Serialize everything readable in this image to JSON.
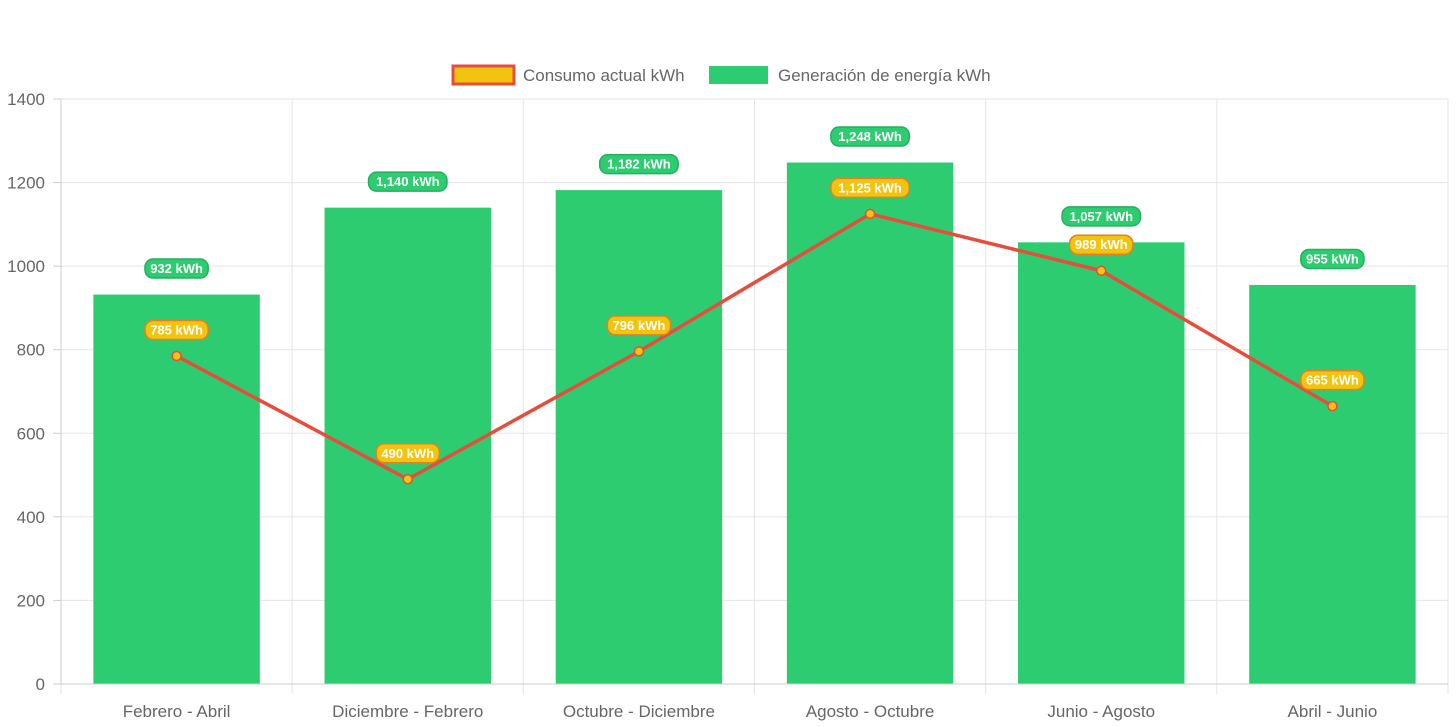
{
  "chart_data": {
    "type": "bar",
    "categories": [
      "Febrero - Abril",
      "Diciembre - Febrero",
      "Octubre - Diciembre",
      "Agosto - Octubre",
      "Junio - Agosto",
      "Abril - Junio"
    ],
    "series": [
      {
        "name": "Consumo actual kWh",
        "type": "line",
        "values": [
          785,
          490,
          796,
          1125,
          989,
          665
        ],
        "labels": [
          "785 kWh",
          "490 kWh",
          "796 kWh",
          "1,125 kWh",
          "989 kWh",
          "665 kWh"
        ],
        "color": "#e74c3c",
        "fill_color": "#f1c40f"
      },
      {
        "name": "Generación de energía kWh",
        "type": "bar",
        "values": [
          932,
          1140,
          1182,
          1248,
          1057,
          955
        ],
        "labels": [
          "932 kWh",
          "1,140 kWh",
          "1,182 kWh",
          "1,248 kWh",
          "1,057 kWh",
          "955 kWh"
        ],
        "color": "#2ecc71"
      }
    ],
    "ylim": [
      0,
      1400
    ],
    "yticks": [
      "0",
      "200",
      "400",
      "600",
      "800",
      "1000",
      "1200",
      "1400"
    ],
    "grid": true,
    "legend_position": "top-center"
  }
}
